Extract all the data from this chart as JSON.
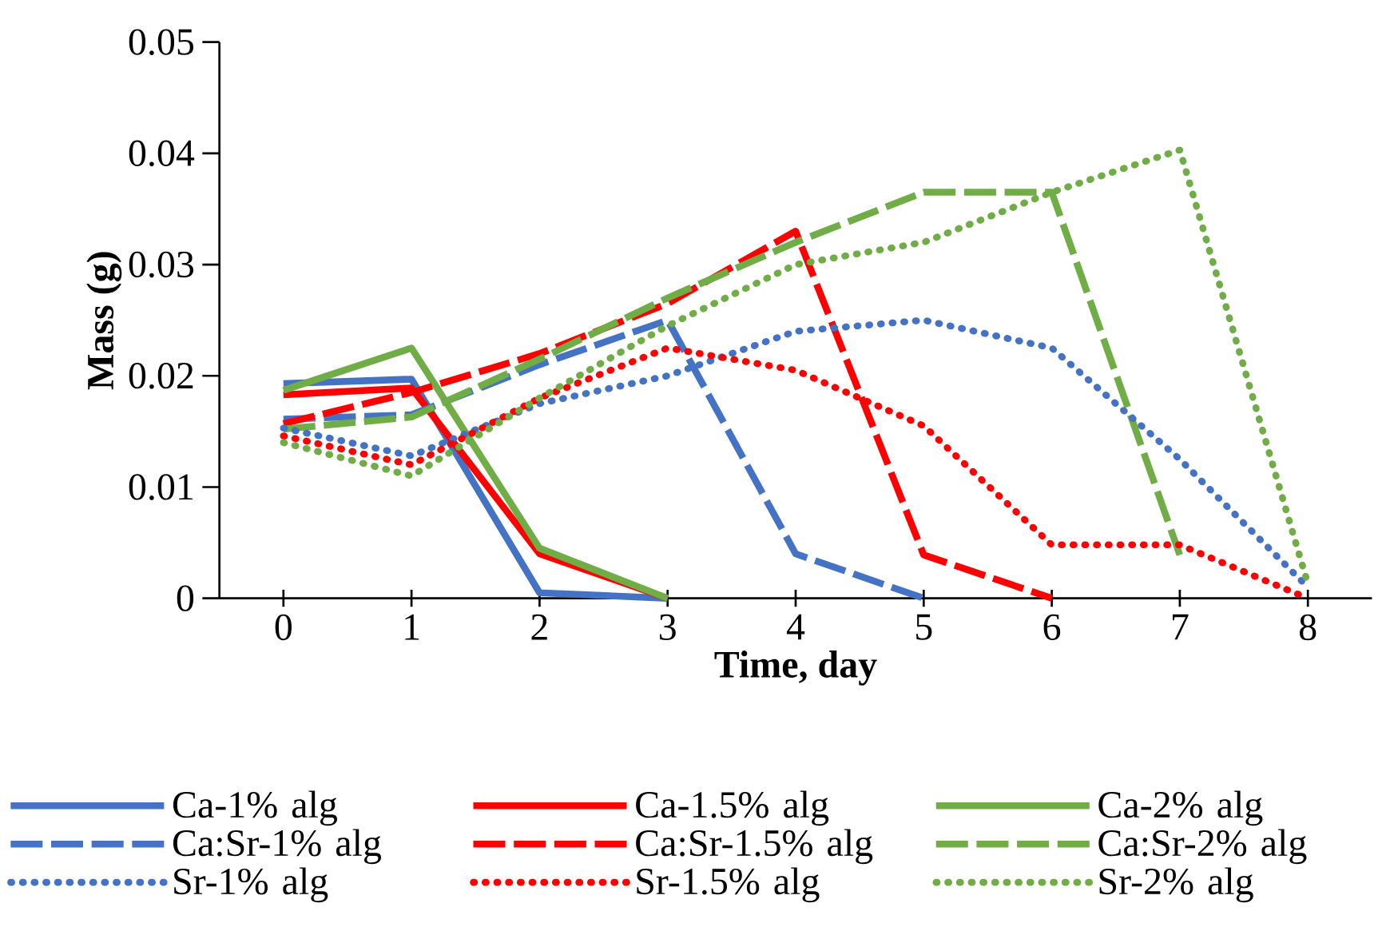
{
  "chart_data": {
    "type": "line",
    "xlabel": "Time, day",
    "ylabel": "Mass (g)",
    "x": [
      0,
      1,
      2,
      3,
      4,
      5,
      6,
      7,
      8
    ],
    "xlim": [
      -0.5,
      8.5
    ],
    "xticks": [
      0,
      1,
      2,
      3,
      4,
      5,
      6,
      7,
      8
    ],
    "ylim": [
      0,
      0.05
    ],
    "yticks": [
      0,
      0.01,
      0.02,
      0.03,
      0.04,
      0.05
    ],
    "legend": "bottom",
    "series": [
      {
        "name": "Ca-1% alg",
        "color": "#4472c4",
        "line_style": "solid",
        "values": [
          0.0193,
          0.0197,
          0.0005,
          0,
          null,
          null,
          null,
          null,
          null
        ]
      },
      {
        "name": "Ca-1.5% alg",
        "color": "#ff0000",
        "line_style": "solid",
        "values": [
          0.0183,
          0.0189,
          0.004,
          0,
          null,
          null,
          null,
          null,
          null
        ]
      },
      {
        "name": "Ca-2% alg",
        "color": "#70ad47",
        "line_style": "solid",
        "values": [
          0.0187,
          0.0225,
          0.0045,
          0,
          null,
          null,
          null,
          null,
          null
        ]
      },
      {
        "name": "Ca:Sr-1% alg",
        "color": "#4472c4",
        "line_style": "dashed",
        "values": [
          0.0161,
          0.0165,
          0.021,
          0.025,
          0.004,
          0,
          null,
          null,
          null
        ]
      },
      {
        "name": "Ca:Sr-1.5% alg",
        "color": "#ff0000",
        "line_style": "dashed",
        "values": [
          0.0157,
          0.0185,
          0.022,
          0.0265,
          0.033,
          0.0039,
          0,
          null,
          null
        ]
      },
      {
        "name": "Ca:Sr-2% alg",
        "color": "#70ad47",
        "line_style": "dashed",
        "values": [
          0.0152,
          0.0163,
          0.0215,
          0.027,
          0.032,
          0.0365,
          0.0365,
          0.0039,
          null
        ]
      },
      {
        "name": "Sr-1% alg",
        "color": "#4472c4",
        "line_style": "dotted",
        "values": [
          0.0153,
          0.0128,
          0.0175,
          0.02,
          0.024,
          0.025,
          0.0225,
          0.0125,
          0.001
        ]
      },
      {
        "name": "Sr-1.5% alg",
        "color": "#ff0000",
        "line_style": "dotted",
        "values": [
          0.0146,
          0.012,
          0.018,
          0.0225,
          0.0205,
          0.0155,
          0.0048,
          0.0048,
          0
        ]
      },
      {
        "name": "Sr-2% alg",
        "color": "#70ad47",
        "line_style": "dotted",
        "values": [
          0.014,
          0.011,
          0.018,
          0.0245,
          0.03,
          0.032,
          0.0365,
          0.0403,
          0.0013
        ]
      }
    ]
  }
}
